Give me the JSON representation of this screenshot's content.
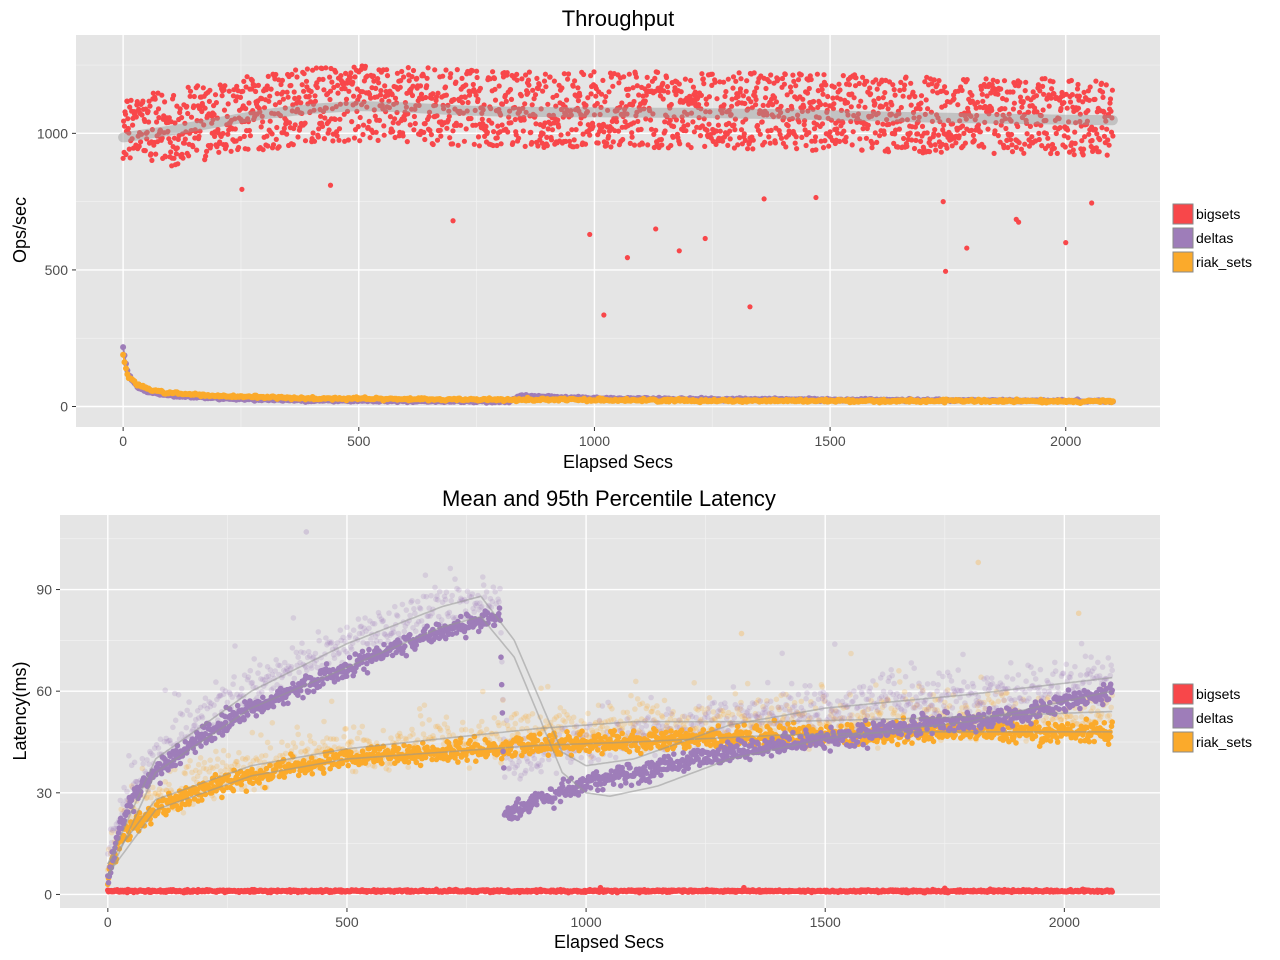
{
  "chart_data": [
    {
      "id": "throughput",
      "type": "scatter",
      "title": "Throughput",
      "xlabel": "Elapsed Secs",
      "ylabel": "Ops/sec",
      "xlim": [
        -100,
        2200
      ],
      "ylim": [
        -75,
        1360
      ],
      "x_ticks": [
        0,
        500,
        1000,
        1500,
        2000
      ],
      "x_tick_labels": [
        "0",
        "500",
        "1000",
        "1500",
        "2000"
      ],
      "y_ticks": [
        0,
        500,
        1000
      ],
      "y_tick_labels": [
        "0",
        "500",
        "1000"
      ],
      "grid": true,
      "legend_position": "right",
      "x_range": [
        0,
        2100
      ],
      "series": [
        {
          "name": "bigsets",
          "color": "#F8474A",
          "trend": [
            [
              0,
              985
            ],
            [
              100,
              1010
            ],
            [
              200,
              1040
            ],
            [
              300,
              1070
            ],
            [
              400,
              1090
            ],
            [
              500,
              1100
            ],
            [
              600,
              1095
            ],
            [
              700,
              1085
            ],
            [
              800,
              1080
            ],
            [
              900,
              1078
            ],
            [
              1000,
              1077
            ],
            [
              1200,
              1075
            ],
            [
              1400,
              1070
            ],
            [
              1600,
              1062
            ],
            [
              1800,
              1055
            ],
            [
              2000,
              1050
            ],
            [
              2100,
              1048
            ]
          ],
          "spread": 150,
          "outliers": [
            [
              252,
              795
            ],
            [
              440,
              810
            ],
            [
              700,
              680
            ],
            [
              990,
              630
            ],
            [
              1020,
              335
            ],
            [
              1070,
              545
            ],
            [
              1130,
              650
            ],
            [
              1180,
              570
            ],
            [
              1235,
              615
            ],
            [
              1330,
              365
            ],
            [
              1360,
              760
            ],
            [
              1470,
              765
            ],
            [
              1740,
              750
            ],
            [
              1745,
              495
            ],
            [
              1790,
              580
            ],
            [
              1895,
              685
            ],
            [
              1900,
              675
            ],
            [
              2000,
              600
            ],
            [
              2055,
              745
            ]
          ]
        },
        {
          "name": "deltas",
          "color": "#9E7DB9",
          "trend": [
            [
              0,
              215
            ],
            [
              10,
              120
            ],
            [
              30,
              70
            ],
            [
              60,
              50
            ],
            [
              100,
              40
            ],
            [
              200,
              30
            ],
            [
              400,
              22
            ],
            [
              600,
              20
            ],
            [
              820,
              18
            ],
            [
              840,
              40
            ],
            [
              900,
              35
            ],
            [
              1000,
              30
            ],
            [
              1200,
              27
            ],
            [
              1500,
              25
            ],
            [
              1800,
              22
            ],
            [
              2100,
              20
            ]
          ],
          "spread": 5,
          "outliers": []
        },
        {
          "name": "riak_sets",
          "color": "#FBAA2B",
          "trend": [
            [
              0,
              190
            ],
            [
              10,
              110
            ],
            [
              30,
              80
            ],
            [
              60,
              60
            ],
            [
              100,
              50
            ],
            [
              200,
              38
            ],
            [
              400,
              30
            ],
            [
              600,
              27
            ],
            [
              820,
              25
            ],
            [
              900,
              25
            ],
            [
              1200,
              22
            ],
            [
              1500,
              21
            ],
            [
              1800,
              20
            ],
            [
              2100,
              19
            ]
          ],
          "spread": 6,
          "outliers": []
        }
      ]
    },
    {
      "id": "latency",
      "type": "scatter",
      "title": "Mean and 95th Percentile Latency",
      "xlabel": "Elapsed Secs",
      "ylabel": "Latency(ms)",
      "xlim": [
        -100,
        2200
      ],
      "ylim": [
        -4,
        112
      ],
      "x_ticks": [
        0,
        500,
        1000,
        1500,
        2000
      ],
      "x_tick_labels": [
        "0",
        "500",
        "1000",
        "1500",
        "2000"
      ],
      "y_ticks": [
        0,
        30,
        60,
        90
      ],
      "y_tick_labels": [
        "0",
        "30",
        "60",
        "90"
      ],
      "grid": true,
      "legend_position": "right",
      "x_range": [
        0,
        2100
      ],
      "series": [
        {
          "name": "bigsets",
          "color": "#F8474A",
          "mean": [
            [
              0,
              1
            ],
            [
              2100,
              1
            ]
          ],
          "p95": [],
          "spread": 0.3,
          "outliers": [
            [
              1030,
              2
            ],
            [
              1330,
              2
            ],
            [
              1750,
              1.8
            ]
          ]
        },
        {
          "name": "deltas",
          "color": "#9E7DB9",
          "mean": [
            [
              0,
              5
            ],
            [
              25,
              20
            ],
            [
              50,
              28
            ],
            [
              100,
              36
            ],
            [
              200,
              47
            ],
            [
              300,
              55
            ],
            [
              400,
              61
            ],
            [
              500,
              67
            ],
            [
              600,
              73
            ],
            [
              700,
              78
            ],
            [
              820,
              82
            ],
            [
              830,
              24
            ],
            [
              900,
              28
            ],
            [
              1000,
              33
            ],
            [
              1100,
              36
            ],
            [
              1200,
              39
            ],
            [
              1300,
              42
            ],
            [
              1400,
              44
            ],
            [
              1500,
              46
            ],
            [
              1600,
              48
            ],
            [
              1700,
              50
            ],
            [
              1800,
              51
            ],
            [
              1900,
              53
            ],
            [
              2000,
              56
            ],
            [
              2100,
              60
            ]
          ],
          "p95": [
            [
              0,
              10
            ],
            [
              25,
              25
            ],
            [
              50,
              32
            ],
            [
              100,
              40
            ],
            [
              200,
              52
            ],
            [
              300,
              60
            ],
            [
              400,
              68
            ],
            [
              500,
              74
            ],
            [
              600,
              80
            ],
            [
              700,
              85
            ],
            [
              820,
              88
            ],
            [
              830,
              38
            ],
            [
              900,
              42
            ],
            [
              1000,
              45
            ],
            [
              1100,
              47
            ],
            [
              1200,
              49
            ],
            [
              1300,
              51
            ],
            [
              1400,
              53
            ],
            [
              1500,
              55
            ],
            [
              1600,
              57
            ],
            [
              1700,
              58
            ],
            [
              1800,
              59
            ],
            [
              1900,
              60
            ],
            [
              2000,
              62
            ],
            [
              2100,
              64
            ]
          ],
          "spread": 2.5,
          "outliers": [
            [
              415,
              107
            ]
          ]
        },
        {
          "name": "riak_sets",
          "color": "#FBAA2B",
          "mean": [
            [
              0,
              6
            ],
            [
              25,
              15
            ],
            [
              50,
              20
            ],
            [
              100,
              25
            ],
            [
              200,
              31
            ],
            [
              300,
              35
            ],
            [
              400,
              38
            ],
            [
              500,
              40
            ],
            [
              600,
              41
            ],
            [
              700,
              42
            ],
            [
              800,
              43
            ],
            [
              900,
              44
            ],
            [
              1000,
              45
            ],
            [
              1100,
              45
            ],
            [
              1200,
              46
            ],
            [
              1300,
              46
            ],
            [
              1400,
              47
            ],
            [
              1500,
              47
            ],
            [
              1600,
              47
            ],
            [
              1700,
              48
            ],
            [
              1800,
              48
            ],
            [
              1900,
              48
            ],
            [
              2000,
              48
            ],
            [
              2100,
              48
            ]
          ],
          "p95": [
            [
              0,
              9
            ],
            [
              25,
              18
            ],
            [
              50,
              24
            ],
            [
              100,
              28
            ],
            [
              200,
              34
            ],
            [
              300,
              38
            ],
            [
              400,
              41
            ],
            [
              500,
              43
            ],
            [
              600,
              44
            ],
            [
              700,
              45
            ],
            [
              800,
              47
            ],
            [
              900,
              48
            ],
            [
              1000,
              49
            ],
            [
              1100,
              50
            ],
            [
              1200,
              50
            ],
            [
              1300,
              51
            ],
            [
              1400,
              51
            ],
            [
              1500,
              52
            ],
            [
              1600,
              52
            ],
            [
              1700,
              52
            ],
            [
              1800,
              53
            ],
            [
              1900,
              53
            ],
            [
              2000,
              53
            ],
            [
              2100,
              54
            ]
          ],
          "spread": 2.5,
          "outliers": [
            [
              1820,
              98
            ],
            [
              2030,
              83
            ],
            [
              1325,
              77
            ]
          ]
        }
      ],
      "smooth_curves": [
        [
          [
            0,
            5
          ],
          [
            100,
            36
          ],
          [
            300,
            55
          ],
          [
            500,
            67
          ],
          [
            700,
            79
          ],
          [
            780,
            82
          ],
          [
            850,
            70
          ],
          [
            950,
            36
          ],
          [
            1000,
            30
          ],
          [
            1050,
            29
          ],
          [
            1150,
            32
          ],
          [
            1300,
            40
          ],
          [
            1500,
            46
          ],
          [
            1800,
            51
          ],
          [
            2100,
            60
          ]
        ],
        [
          [
            0,
            9
          ],
          [
            100,
            40
          ],
          [
            300,
            60
          ],
          [
            500,
            74
          ],
          [
            700,
            85
          ],
          [
            780,
            88
          ],
          [
            850,
            75
          ],
          [
            950,
            42
          ],
          [
            1000,
            38
          ],
          [
            1100,
            40
          ],
          [
            1300,
            50
          ],
          [
            1500,
            55
          ],
          [
            1800,
            59
          ],
          [
            2100,
            64
          ]
        ],
        [
          [
            0,
            6
          ],
          [
            100,
            25
          ],
          [
            300,
            35
          ],
          [
            500,
            40
          ],
          [
            700,
            42
          ],
          [
            900,
            44
          ],
          [
            1100,
            45
          ],
          [
            1400,
            47
          ],
          [
            1700,
            48
          ],
          [
            2100,
            48
          ]
        ],
        [
          [
            0,
            9
          ],
          [
            100,
            28
          ],
          [
            300,
            38
          ],
          [
            500,
            43
          ],
          [
            700,
            46
          ],
          [
            900,
            49
          ],
          [
            1100,
            51
          ],
          [
            1400,
            51
          ],
          [
            1700,
            52
          ],
          [
            2100,
            54
          ]
        ]
      ]
    }
  ]
}
